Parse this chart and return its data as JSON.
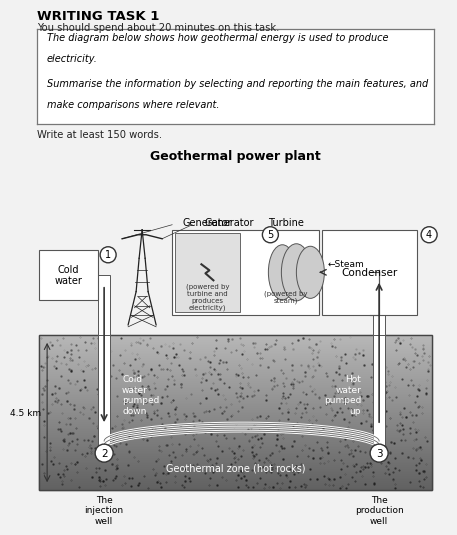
{
  "title": "WRITING TASK 1",
  "subtitle": "You should spend about 20 minutes on this task.",
  "box_line1": "The diagram below shows how geothermal energy is used to produce",
  "box_line2": "electricity.",
  "box_line3": "Summarise the information by selecting and reporting the main features, and",
  "box_line4": "make comparisons where relevant.",
  "write_text": "Write at least 150 words.",
  "diagram_title": "Geothermal power plant",
  "generator_label": "(powered by\nturbine and\nproduces\nelectricity)",
  "turbine_label": "(powered by\nsteam)",
  "geothermal_zone": "Geothermal zone (hot rocks)",
  "cold_water_down": "Cold\nwater\npumped\ndown",
  "hot_water_up": "Hot\nwater\npumped\nup",
  "steam_label": "←Steam",
  "depth_label": "4.5 km",
  "cold_water_label": "Cold\nwater",
  "injection_well_label": "The\ninjection\nwell",
  "production_well_label": "The\nproduction\nwell",
  "condenser_label": "Condenser",
  "generator_text": "Generator",
  "turbine_text": "Turbine",
  "bg_color": "#f2f2f2"
}
